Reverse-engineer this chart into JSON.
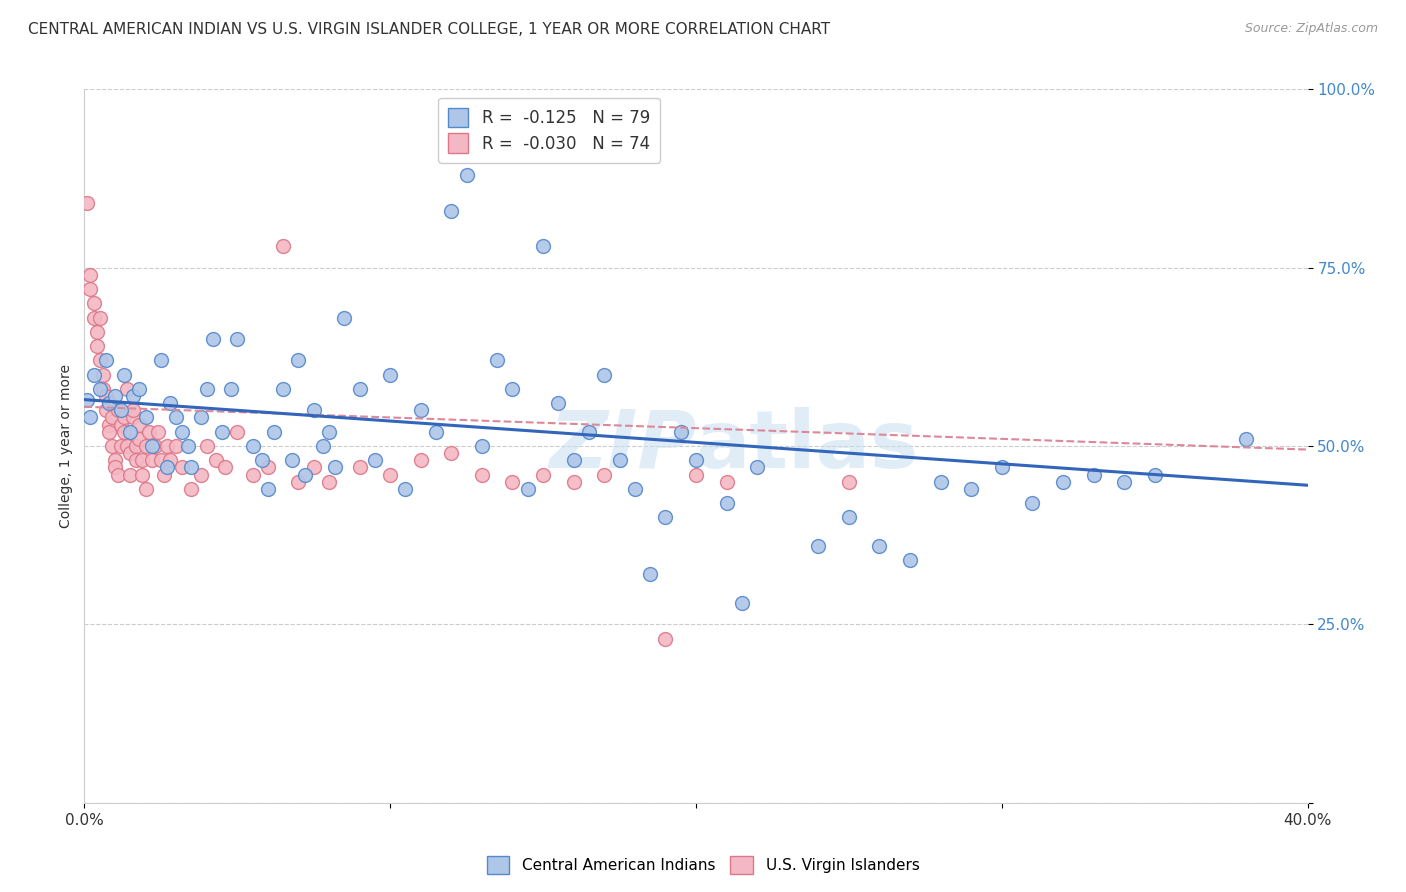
{
  "title": "CENTRAL AMERICAN INDIAN VS U.S. VIRGIN ISLANDER COLLEGE, 1 YEAR OR MORE CORRELATION CHART",
  "source": "Source: ZipAtlas.com",
  "ylabel": "College, 1 year or more",
  "xmin": 0.0,
  "xmax": 0.4,
  "ymin": 0.0,
  "ymax": 1.0,
  "watermark": "ZIPatlas",
  "legend_label_blue": "Central American Indians",
  "legend_label_pink": "U.S. Virgin Islanders",
  "legend_r_blue": "R =  -0.125",
  "legend_n_blue": "N = 79",
  "legend_r_pink": "R =  -0.030",
  "legend_n_pink": "N = 74",
  "blue_scatter": [
    [
      0.001,
      0.565
    ],
    [
      0.002,
      0.54
    ],
    [
      0.003,
      0.6
    ],
    [
      0.005,
      0.58
    ],
    [
      0.007,
      0.62
    ],
    [
      0.008,
      0.56
    ],
    [
      0.01,
      0.57
    ],
    [
      0.012,
      0.55
    ],
    [
      0.013,
      0.6
    ],
    [
      0.015,
      0.52
    ],
    [
      0.016,
      0.57
    ],
    [
      0.018,
      0.58
    ],
    [
      0.02,
      0.54
    ],
    [
      0.022,
      0.5
    ],
    [
      0.025,
      0.62
    ],
    [
      0.027,
      0.47
    ],
    [
      0.028,
      0.56
    ],
    [
      0.03,
      0.54
    ],
    [
      0.032,
      0.52
    ],
    [
      0.034,
      0.5
    ],
    [
      0.035,
      0.47
    ],
    [
      0.038,
      0.54
    ],
    [
      0.04,
      0.58
    ],
    [
      0.042,
      0.65
    ],
    [
      0.045,
      0.52
    ],
    [
      0.048,
      0.58
    ],
    [
      0.05,
      0.65
    ],
    [
      0.055,
      0.5
    ],
    [
      0.058,
      0.48
    ],
    [
      0.06,
      0.44
    ],
    [
      0.062,
      0.52
    ],
    [
      0.065,
      0.58
    ],
    [
      0.068,
      0.48
    ],
    [
      0.07,
      0.62
    ],
    [
      0.072,
      0.46
    ],
    [
      0.075,
      0.55
    ],
    [
      0.078,
      0.5
    ],
    [
      0.08,
      0.52
    ],
    [
      0.082,
      0.47
    ],
    [
      0.085,
      0.68
    ],
    [
      0.09,
      0.58
    ],
    [
      0.095,
      0.48
    ],
    [
      0.1,
      0.6
    ],
    [
      0.105,
      0.44
    ],
    [
      0.11,
      0.55
    ],
    [
      0.115,
      0.52
    ],
    [
      0.12,
      0.83
    ],
    [
      0.125,
      0.88
    ],
    [
      0.13,
      0.5
    ],
    [
      0.135,
      0.62
    ],
    [
      0.14,
      0.58
    ],
    [
      0.145,
      0.44
    ],
    [
      0.15,
      0.78
    ],
    [
      0.155,
      0.56
    ],
    [
      0.16,
      0.48
    ],
    [
      0.165,
      0.52
    ],
    [
      0.17,
      0.6
    ],
    [
      0.175,
      0.48
    ],
    [
      0.18,
      0.44
    ],
    [
      0.185,
      0.32
    ],
    [
      0.19,
      0.4
    ],
    [
      0.195,
      0.52
    ],
    [
      0.2,
      0.48
    ],
    [
      0.21,
      0.42
    ],
    [
      0.215,
      0.28
    ],
    [
      0.22,
      0.47
    ],
    [
      0.24,
      0.36
    ],
    [
      0.25,
      0.4
    ],
    [
      0.26,
      0.36
    ],
    [
      0.27,
      0.34
    ],
    [
      0.28,
      0.45
    ],
    [
      0.29,
      0.44
    ],
    [
      0.3,
      0.47
    ],
    [
      0.31,
      0.42
    ],
    [
      0.32,
      0.45
    ],
    [
      0.33,
      0.46
    ],
    [
      0.34,
      0.45
    ],
    [
      0.35,
      0.46
    ],
    [
      0.38,
      0.51
    ]
  ],
  "pink_scatter": [
    [
      0.001,
      0.84
    ],
    [
      0.002,
      0.74
    ],
    [
      0.002,
      0.72
    ],
    [
      0.003,
      0.7
    ],
    [
      0.003,
      0.68
    ],
    [
      0.004,
      0.66
    ],
    [
      0.004,
      0.64
    ],
    [
      0.005,
      0.68
    ],
    [
      0.005,
      0.62
    ],
    [
      0.006,
      0.6
    ],
    [
      0.006,
      0.58
    ],
    [
      0.007,
      0.57
    ],
    [
      0.007,
      0.55
    ],
    [
      0.008,
      0.53
    ],
    [
      0.008,
      0.52
    ],
    [
      0.009,
      0.54
    ],
    [
      0.009,
      0.5
    ],
    [
      0.01,
      0.48
    ],
    [
      0.01,
      0.47
    ],
    [
      0.011,
      0.46
    ],
    [
      0.011,
      0.55
    ],
    [
      0.012,
      0.53
    ],
    [
      0.012,
      0.5
    ],
    [
      0.013,
      0.54
    ],
    [
      0.013,
      0.52
    ],
    [
      0.014,
      0.58
    ],
    [
      0.014,
      0.5
    ],
    [
      0.015,
      0.46
    ],
    [
      0.015,
      0.49
    ],
    [
      0.016,
      0.54
    ],
    [
      0.016,
      0.55
    ],
    [
      0.017,
      0.5
    ],
    [
      0.017,
      0.48
    ],
    [
      0.018,
      0.53
    ],
    [
      0.018,
      0.51
    ],
    [
      0.019,
      0.46
    ],
    [
      0.019,
      0.48
    ],
    [
      0.02,
      0.44
    ],
    [
      0.02,
      0.5
    ],
    [
      0.021,
      0.52
    ],
    [
      0.022,
      0.48
    ],
    [
      0.023,
      0.5
    ],
    [
      0.024,
      0.52
    ],
    [
      0.025,
      0.48
    ],
    [
      0.026,
      0.46
    ],
    [
      0.027,
      0.5
    ],
    [
      0.028,
      0.48
    ],
    [
      0.03,
      0.5
    ],
    [
      0.032,
      0.47
    ],
    [
      0.035,
      0.44
    ],
    [
      0.038,
      0.46
    ],
    [
      0.04,
      0.5
    ],
    [
      0.043,
      0.48
    ],
    [
      0.046,
      0.47
    ],
    [
      0.05,
      0.52
    ],
    [
      0.055,
      0.46
    ],
    [
      0.06,
      0.47
    ],
    [
      0.065,
      0.78
    ],
    [
      0.07,
      0.45
    ],
    [
      0.075,
      0.47
    ],
    [
      0.08,
      0.45
    ],
    [
      0.09,
      0.47
    ],
    [
      0.1,
      0.46
    ],
    [
      0.11,
      0.48
    ],
    [
      0.12,
      0.49
    ],
    [
      0.13,
      0.46
    ],
    [
      0.14,
      0.45
    ],
    [
      0.15,
      0.46
    ],
    [
      0.16,
      0.45
    ],
    [
      0.17,
      0.46
    ],
    [
      0.19,
      0.23
    ],
    [
      0.2,
      0.46
    ],
    [
      0.21,
      0.45
    ],
    [
      0.25,
      0.45
    ]
  ],
  "blue_line_x": [
    0.0,
    0.4
  ],
  "blue_line_y": [
    0.565,
    0.445
  ],
  "pink_line_x": [
    0.0,
    0.4
  ],
  "pink_line_y": [
    0.555,
    0.495
  ],
  "yticks": [
    0.0,
    0.25,
    0.5,
    0.75,
    1.0
  ],
  "ytick_labels": [
    "",
    "25.0%",
    "50.0%",
    "75.0%",
    "100.0%"
  ],
  "xticks": [
    0.0,
    0.1,
    0.2,
    0.3,
    0.4
  ],
  "xtick_labels": [
    "0.0%",
    "",
    "",
    "",
    "40.0%"
  ],
  "blue_color": "#aec6e8",
  "pink_color": "#f4b8c4",
  "blue_edge_color": "#5588cc",
  "pink_edge_color": "#dd7788",
  "blue_line_color": "#3366bb",
  "pink_line_color": "#dd8899",
  "grid_color": "#cccccc",
  "background_color": "#ffffff",
  "title_fontsize": 11,
  "axis_label_fontsize": 10,
  "tick_fontsize": 11,
  "scatter_size": 100
}
